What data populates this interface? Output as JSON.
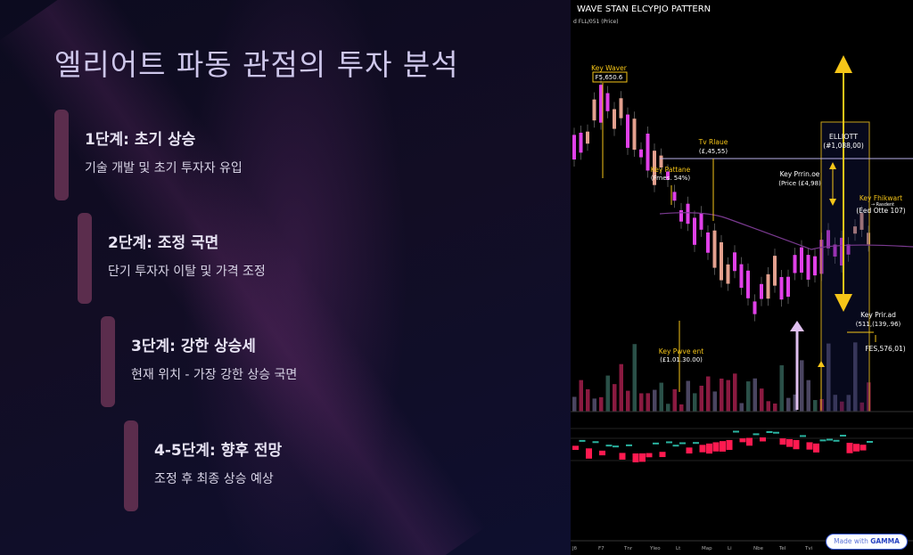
{
  "slide": {
    "title": "엘리어트 파동 관점의 투자 분석",
    "accent": "#5b2d4d",
    "steps": [
      {
        "heading": "1단계: 초기 상승",
        "desc": "기술 개발 및 초기 투자자 유입"
      },
      {
        "heading": "2단계: 조정 국면",
        "desc": "단기 투자자 이탈 및 가격 조정"
      },
      {
        "heading": "3단계: 강한 상승세",
        "desc": "현재 위치 - 가장 강한 상승 국면"
      },
      {
        "heading": "4-5단계: 향후 전망",
        "desc": "조정 후 최종 상승 예상"
      }
    ]
  },
  "chart_image": {
    "title": "WAVE STAN ELCYPJO PATTERN",
    "subtitle": "d FLL/051 (Price)",
    "annotations": {
      "a1": {
        "line1": "Key Waver",
        "line2": "F5,650.6"
      },
      "a2": {
        "line1": "Tv Rlaue",
        "line2": "(£,45,55)"
      },
      "a3": {
        "line1": "Key Pattane",
        "line2": "(Frnes. 54%)"
      },
      "a4": {
        "line1": "Key Prrin.oe",
        "line2": "(Price (£4,98)"
      },
      "a5": {
        "line1": "ELLIOTT",
        "line2": "(#1,088,00)"
      },
      "a6": {
        "line1": "Key Fhikwart",
        "line2": "(Eed Otte 107)",
        "line3": "→ Rasdent"
      },
      "a7": {
        "line1": "Key Prir.ad",
        "line2": "(511,(139,.96)"
      },
      "a8": {
        "line1": "FES,576,01)"
      },
      "a9": {
        "line1": "Key Pwve ent",
        "line2": "(£1.01.30.00)"
      }
    },
    "x_ticks": [
      "Jб",
      "F7",
      "Tnr",
      "Yleo",
      "Lt",
      "Map",
      "Li",
      "Nbe",
      "Tel",
      "Tvi",
      "Flr"
    ],
    "colors": {
      "bull": "#e3a08e",
      "bear": "#e040e8",
      "annotation": "#f5c518",
      "volume_red": "#8a1a40",
      "volume_gray": "#4a4560",
      "volume_green": "#2a5048"
    }
  },
  "badge": {
    "prefix": "Made with",
    "brand": "GAMMA"
  }
}
